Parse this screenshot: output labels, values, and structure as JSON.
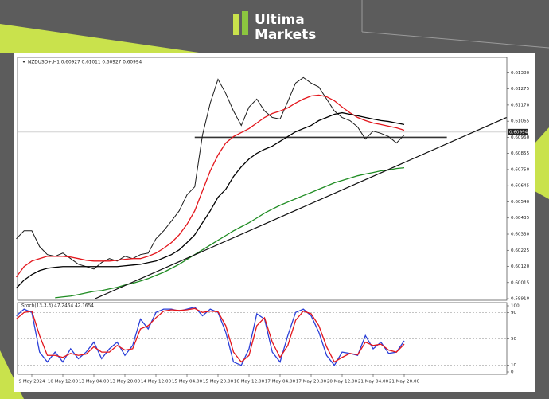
{
  "logo": [
    "Ultima",
    "Markets"
  ],
  "chart_data": [
    {
      "type": "line",
      "title": "NZDUSD+,H1 0.60927 0.61011 0.60927 0.60994",
      "categories": [
        null,
        null,
        "9 May 2024",
        null,
        null,
        null,
        "10 May 12:00",
        null,
        null,
        null,
        "13 May 04:00",
        null,
        null,
        null,
        "13 May 20:00",
        null,
        null,
        null,
        "14 May 12:00",
        null,
        null,
        null,
        "15 May 04:00",
        null,
        null,
        null,
        "15 May 20:00",
        null,
        null,
        null,
        "16 May 12:00",
        null,
        null,
        null,
        "17 May 04:00",
        null,
        null,
        null,
        "17 May 20:00",
        null,
        null,
        null,
        "20 May 12:00",
        null,
        null,
        null,
        "21 May 04:00",
        null,
        null,
        null,
        "21 May 20:00"
      ],
      "series": [
        {
          "color": "#1a1a1a",
          "values": [
            0.603,
            0.60352,
            0.60352,
            0.60249,
            0.60197,
            0.60186,
            0.60207,
            0.60171,
            0.60134,
            0.60119,
            0.60103,
            0.60145,
            0.60171,
            0.60155,
            0.60186,
            0.60171,
            0.60197,
            0.60207,
            0.603,
            0.60352,
            0.60415,
            0.60482,
            0.60586,
            0.60638,
            0.60975,
            0.61183,
            0.61338,
            0.61245,
            0.61131,
            0.61037,
            0.61157,
            0.61209,
            0.61131,
            0.61089,
            0.61079,
            0.61193,
            0.61313,
            0.61349,
            0.61313,
            0.61287,
            0.61209,
            0.61131,
            0.61089,
            0.61069,
            0.61027,
            0.60949,
            0.61001,
            0.60986,
            0.60965,
            0.60923,
            0.60975
          ]
        },
        {
          "color": "#e3161c",
          "values": [
            0.60051,
            0.60119,
            0.60155,
            0.60171,
            0.60186,
            0.60186,
            0.60186,
            0.60181,
            0.60171,
            0.6016,
            0.60155,
            0.60155,
            0.60155,
            0.6016,
            0.60166,
            0.60171,
            0.60171,
            0.60186,
            0.60207,
            0.60238,
            0.60275,
            0.60326,
            0.60394,
            0.60482,
            0.60612,
            0.60742,
            0.60845,
            0.60923,
            0.60965,
            0.60991,
            0.61017,
            0.61053,
            0.61089,
            0.61115,
            0.61131,
            0.61152,
            0.61183,
            0.61209,
            0.61229,
            0.61235,
            0.61224,
            0.61198,
            0.61157,
            0.6112,
            0.61089,
            0.61069,
            0.61053,
            0.61043,
            0.61032,
            0.61022,
            0.61006
          ]
        },
        {
          "color": "#000000",
          "values": [
            0.59979,
            0.60031,
            0.60067,
            0.60093,
            0.60108,
            0.60114,
            0.60119,
            0.60119,
            0.60119,
            0.60119,
            0.60119,
            0.60119,
            0.60119,
            0.60119,
            0.60124,
            0.60129,
            0.60134,
            0.60145,
            0.60155,
            0.60176,
            0.60197,
            0.60228,
            0.60275,
            0.60326,
            0.60404,
            0.60482,
            0.6057,
            0.60622,
            0.60705,
            0.60768,
            0.60819,
            0.60856,
            0.60882,
            0.60903,
            0.60934,
            0.60965,
            0.60996,
            0.61017,
            0.61037,
            0.61069,
            0.61089,
            0.6111,
            0.6112,
            0.6111,
            0.611,
            0.61089,
            0.61079,
            0.61069,
            0.61063,
            0.61053,
            0.61043
          ]
        },
        {
          "color": "#1f8c22",
          "values": [
            null,
            null,
            null,
            null,
            null,
            0.59916,
            0.59922,
            0.59927,
            0.59937,
            0.59948,
            0.59958,
            0.59963,
            0.59974,
            0.59984,
            0.59999,
            0.6001,
            0.60025,
            0.60041,
            0.60062,
            0.60082,
            0.60108,
            0.60134,
            0.60166,
            0.60197,
            0.60228,
            0.60259,
            0.6029,
            0.60321,
            0.60352,
            0.60378,
            0.60404,
            0.60435,
            0.60467,
            0.60493,
            0.60518,
            0.60539,
            0.6056,
            0.60581,
            0.60601,
            0.60622,
            0.60643,
            0.60664,
            0.60679,
            0.60695,
            0.6071,
            0.60721,
            0.60731,
            0.60742,
            0.60747,
            0.60757,
            0.60762
          ]
        }
      ],
      "ylim": [
        0.599,
        0.6147
      ],
      "yticks": [
        {
          "value": 0.6138,
          "label": "0.61380"
        },
        0.61275,
        {
          "value": 0.6117,
          "label": "0.61170"
        },
        0.61065,
        {
          "value": 0.6096,
          "label": "0.60960"
        },
        0.60855,
        {
          "value": 0.6075,
          "label": "0.60750"
        },
        0.60645,
        {
          "value": 0.6054,
          "label": "0.60540"
        },
        0.60435,
        {
          "value": 0.6033,
          "label": "0.60330"
        },
        0.60225,
        {
          "value": 0.6012,
          "label": "0.60120"
        },
        0.60015,
        {
          "value": 0.5991,
          "label": "0.59910"
        }
      ],
      "current_price": 0.60994,
      "trendline": {
        "x": [
          10.2,
          63.2
        ],
        "y": [
          0.59911,
          0.61089
        ]
      },
      "support": {
        "x": [
          23,
          55.5
        ],
        "y": 0.6096
      }
    },
    {
      "type": "line",
      "title": "Stoch(13,3,3) 47.2464 42.1654",
      "series": [
        {
          "color": "#2b3fd8",
          "values": [
            85,
            95,
            90,
            30,
            15,
            30,
            15,
            35,
            20,
            30,
            45,
            20,
            35,
            45,
            25,
            40,
            80,
            65,
            90,
            95,
            95,
            92,
            95,
            98,
            85,
            95,
            90,
            60,
            15,
            10,
            35,
            88,
            80,
            30,
            15,
            55,
            90,
            95,
            85,
            60,
            25,
            10,
            30,
            28,
            25,
            55,
            35,
            45,
            28,
            30,
            47
          ]
        },
        {
          "color": "#e3161c",
          "values": [
            80,
            90,
            92,
            55,
            25,
            25,
            22,
            28,
            25,
            27,
            38,
            30,
            30,
            40,
            33,
            35,
            65,
            70,
            82,
            92,
            94,
            93,
            94,
            96,
            90,
            92,
            91,
            70,
            30,
            15,
            25,
            70,
            82,
            45,
            22,
            40,
            78,
            92,
            88,
            70,
            38,
            15,
            22,
            28,
            26,
            45,
            40,
            42,
            33,
            30,
            42
          ]
        }
      ],
      "ylim": [
        0,
        100
      ],
      "yticks": [
        0,
        10,
        50,
        90,
        100
      ],
      "grid": true
    }
  ]
}
